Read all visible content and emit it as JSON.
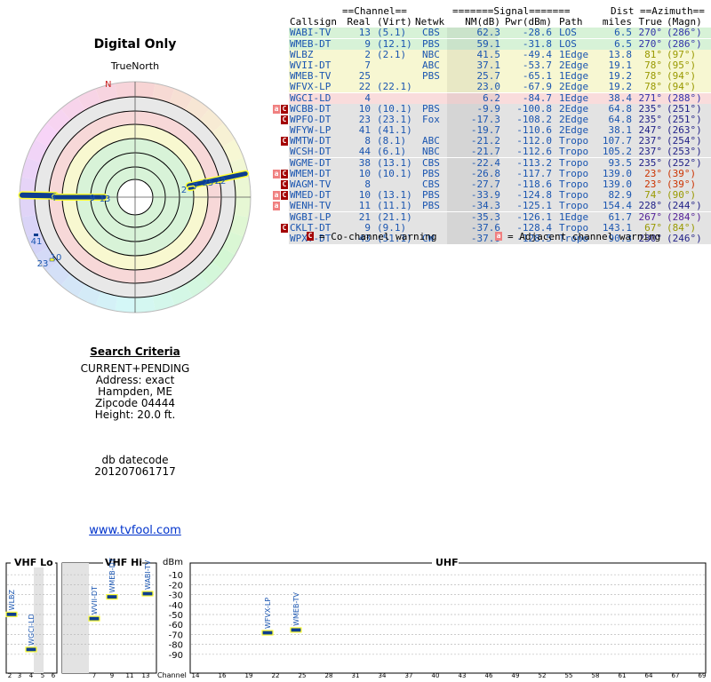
{
  "title": "Digital Only",
  "true_north": "TrueNorth",
  "north_marker": "N",
  "search": {
    "header": "Search Criteria",
    "lines": [
      "CURRENT+PENDING",
      "Address: exact",
      "Hampden, ME",
      "Zipcode 04444",
      "Height: 20.0 ft."
    ],
    "db_label": "db datecode",
    "db_value": "201207061717"
  },
  "site_link": "www.tvfool.com",
  "table": {
    "group_headers": {
      "channel": "==Channel==",
      "signal": "=======Signal=======",
      "dist": "Dist",
      "azimuth": "==Azimuth=="
    },
    "columns": {
      "callsign": "Callsign",
      "real": "Real",
      "virt": "(Virt)",
      "netwk": "Netwk",
      "nm": "NM(dB)",
      "pwr": "Pwr(dBm)",
      "path": "Path",
      "miles": "miles",
      "true": "True",
      "magn": "(Magn)"
    },
    "rows": [
      {
        "callsign": "WABI-TV",
        "real": "13",
        "virt": "(5.1)",
        "netwk": "CBS",
        "nm": "62.3",
        "pwr": "-28.6",
        "path": "LOS",
        "miles": "6.5",
        "true": "270°",
        "magn": "(286°)",
        "bg": "#d7f2d7",
        "az": "#3333aa",
        "flag": ""
      },
      {
        "callsign": "WMEB-DT",
        "real": "9",
        "virt": "(12.1)",
        "netwk": "PBS",
        "nm": "59.1",
        "pwr": "-31.8",
        "path": "LOS",
        "miles": "6.5",
        "true": "270°",
        "magn": "(286°)",
        "bg": "#d7f2d7",
        "az": "#3333aa",
        "flag": ""
      },
      {
        "callsign": "WLBZ",
        "real": "2",
        "virt": "(2.1)",
        "netwk": "NBC",
        "nm": "41.5",
        "pwr": "-49.4",
        "path": "1Edge",
        "miles": "13.8",
        "true": "81°",
        "magn": "(97°)",
        "bg": "#f7f7d2",
        "az": "#999900",
        "flag": ""
      },
      {
        "callsign": "WVII-DT",
        "real": "7",
        "virt": "",
        "netwk": "ABC",
        "nm": "37.1",
        "pwr": "-53.7",
        "path": "2Edge",
        "miles": "19.1",
        "true": "78°",
        "magn": "(95°)",
        "bg": "#f7f7d2",
        "az": "#999900",
        "flag": ""
      },
      {
        "callsign": "WMEB-TV",
        "real": "25",
        "virt": "",
        "netwk": "PBS",
        "nm": "25.7",
        "pwr": "-65.1",
        "path": "1Edge",
        "miles": "19.2",
        "true": "78°",
        "magn": "(94°)",
        "bg": "#f7f7d2",
        "az": "#999900",
        "flag": ""
      },
      {
        "callsign": "WFVX-LP",
        "real": "22",
        "virt": "(22.1)",
        "netwk": "",
        "nm": "23.0",
        "pwr": "-67.9",
        "path": "2Edge",
        "miles": "19.2",
        "true": "78°",
        "magn": "(94°)",
        "bg": "#f7f7d2",
        "az": "#999900",
        "flag": ""
      },
      {
        "callsign": "WGCI-LD",
        "real": "4",
        "virt": "",
        "netwk": "",
        "nm": "6.2",
        "pwr": "-84.7",
        "path": "1Edge",
        "miles": "38.4",
        "true": "271°",
        "magn": "(288°)",
        "bg": "#f9dcdc",
        "az": "#3333aa",
        "flag": ""
      },
      {
        "callsign": "WCBB-DT",
        "real": "10",
        "virt": "(10.1)",
        "netwk": "PBS",
        "nm": "-9.9",
        "pwr": "-100.8",
        "path": "2Edge",
        "miles": "64.8",
        "true": "235°",
        "magn": "(251°)",
        "bg": "#e3e3e3",
        "az": "#222288",
        "flag": "AC"
      },
      {
        "callsign": "WPFO-DT",
        "real": "23",
        "virt": "(23.1)",
        "netwk": "Fox",
        "nm": "-17.3",
        "pwr": "-108.2",
        "path": "2Edge",
        "miles": "64.8",
        "true": "235°",
        "magn": "(251°)",
        "bg": "#e3e3e3",
        "az": "#222288",
        "flag": "C"
      },
      {
        "callsign": "WFYW-LP",
        "real": "41",
        "virt": "(41.1)",
        "netwk": "",
        "nm": "-19.7",
        "pwr": "-110.6",
        "path": "2Edge",
        "miles": "38.1",
        "true": "247°",
        "magn": "(263°)",
        "bg": "#e3e3e3",
        "az": "#222288",
        "flag": ""
      },
      {
        "callsign": "WMTW-DT",
        "real": "8",
        "virt": "(8.1)",
        "netwk": "ABC",
        "nm": "-21.2",
        "pwr": "-112.0",
        "path": "Tropo",
        "miles": "107.7",
        "true": "237°",
        "magn": "(254°)",
        "bg": "#e3e3e3",
        "az": "#222288",
        "flag": "C"
      },
      {
        "callsign": "WCSH-DT",
        "real": "44",
        "virt": "(6.1)",
        "netwk": "NBC",
        "nm": "-21.7",
        "pwr": "-112.6",
        "path": "Tropo",
        "miles": "105.2",
        "true": "237°",
        "magn": "(253°)",
        "bg": "#e3e3e3",
        "az": "#222288",
        "flag": ""
      },
      {
        "callsign": "WGME-DT",
        "real": "38",
        "virt": "(13.1)",
        "netwk": "CBS",
        "nm": "-22.4",
        "pwr": "-113.2",
        "path": "Tropo",
        "miles": "93.5",
        "true": "235°",
        "magn": "(252°)",
        "bg": "#e3e3e3",
        "az": "#222288",
        "flag": ""
      },
      {
        "callsign": "WMEM-DT",
        "real": "10",
        "virt": "(10.1)",
        "netwk": "PBS",
        "nm": "-26.8",
        "pwr": "-117.7",
        "path": "Tropo",
        "miles": "139.0",
        "true": "23°",
        "magn": "(39°)",
        "bg": "#e3e3e3",
        "az": "#cc3300",
        "flag": "AC"
      },
      {
        "callsign": "WAGM-TV",
        "real": "8",
        "virt": "",
        "netwk": "CBS",
        "nm": "-27.7",
        "pwr": "-118.6",
        "path": "Tropo",
        "miles": "139.0",
        "true": "23°",
        "magn": "(39°)",
        "bg": "#e3e3e3",
        "az": "#cc3300",
        "flag": "C"
      },
      {
        "callsign": "WMED-DT",
        "real": "10",
        "virt": "(13.1)",
        "netwk": "PBS",
        "nm": "-33.9",
        "pwr": "-124.8",
        "path": "Tropo",
        "miles": "82.9",
        "true": "74°",
        "magn": "(90°)",
        "bg": "#e3e3e3",
        "az": "#999900",
        "flag": "AC"
      },
      {
        "callsign": "WENH-TV",
        "real": "11",
        "virt": "(11.1)",
        "netwk": "PBS",
        "nm": "-34.3",
        "pwr": "-125.1",
        "path": "Tropo",
        "miles": "154.4",
        "true": "228°",
        "magn": "(244°)",
        "bg": "#e3e3e3",
        "az": "#222288",
        "flag": "A"
      },
      {
        "callsign": "WGBI-LP",
        "real": "21",
        "virt": "(21.1)",
        "netwk": "",
        "nm": "-35.3",
        "pwr": "-126.1",
        "path": "1Edge",
        "miles": "61.7",
        "true": "267°",
        "magn": "(284°)",
        "bg": "#e3e3e3",
        "az": "#552299",
        "flag": ""
      },
      {
        "callsign": "CKLT-DT",
        "real": "9",
        "virt": "(9.1)",
        "netwk": "",
        "nm": "-37.6",
        "pwr": "-128.4",
        "path": "Tropo",
        "miles": "143.1",
        "true": "67°",
        "magn": "(84°)",
        "bg": "#e3e3e3",
        "az": "#999900",
        "flag": "C"
      },
      {
        "callsign": "WPXT-DT",
        "real": "43",
        "virt": "(51.1)",
        "netwk": "CW",
        "nm": "-37.6",
        "pwr": "-128.5",
        "path": "Tropo",
        "miles": "90.3",
        "true": "230°",
        "magn": "(246°)",
        "bg": "#e3e3e3",
        "az": "#222288",
        "flag": ""
      }
    ]
  },
  "legend": {
    "co_flag": "C",
    "co_text": "= Co-channel warning",
    "adj_flag": "a",
    "adj_text": "= Adjacent channel warning"
  },
  "radar_labels": [
    {
      "label": "4",
      "az": 271
    },
    {
      "label": "9",
      "az": 270
    },
    {
      "label": "13",
      "az": 270
    },
    {
      "label": "2",
      "az": 81
    },
    {
      "label": "7",
      "az": 78
    },
    {
      "label": "25",
      "az": 78
    },
    {
      "label": "22",
      "az": 78
    },
    {
      "label": "41",
      "az": 247
    },
    {
      "label": "23",
      "az": 235
    },
    {
      "label": "10",
      "az": 235
    }
  ],
  "spectrum": {
    "sections": {
      "vhf_lo": "VHF Lo",
      "vhf_hi": "VHF Hi",
      "uhf": "UHF"
    },
    "y_unit": "dBm",
    "y_ticks": [
      "-10",
      "-20",
      "-30",
      "-40",
      "-50",
      "-60",
      "-70",
      "-80",
      "-90"
    ],
    "x_label": "Channel",
    "vhf_lo_channels": [
      "2",
      "3",
      "4",
      "5",
      "6"
    ],
    "vhf_hi_channels": [
      "7",
      "9",
      "11",
      "13"
    ],
    "uhf_channels": [
      "14",
      "16",
      "19",
      "22",
      "25",
      "28",
      "31",
      "34",
      "37",
      "40",
      "43",
      "46",
      "49",
      "52",
      "55",
      "58",
      "61",
      "64",
      "67",
      "69"
    ],
    "markers": [
      {
        "callsign": "WLBZ",
        "channel": 2,
        "dbm": -49.4,
        "band": "lo"
      },
      {
        "callsign": "WGCI-LD",
        "channel": 4,
        "dbm": -84.7,
        "band": "lo"
      },
      {
        "callsign": "WVII-DT",
        "channel": 7,
        "dbm": -53.7,
        "band": "hi"
      },
      {
        "callsign": "WMEB-DT",
        "channel": 9,
        "dbm": -31.8,
        "band": "hi"
      },
      {
        "callsign": "WABI-TV",
        "channel": 13,
        "dbm": -28.6,
        "band": "hi"
      },
      {
        "callsign": "WFVX-LP",
        "channel": 22,
        "dbm": -67.9,
        "band": "uhf"
      },
      {
        "callsign": "WMEB-TV",
        "channel": 25,
        "dbm": -65.1,
        "band": "uhf"
      }
    ]
  },
  "colors": {
    "link": "#0033cc",
    "header": "#2255aa",
    "row_text": "#1a55b0",
    "warn_co": "#a30000",
    "warn_adj": "#f08080",
    "marker": "#0d3d8f",
    "marker_fill": "#ffff33"
  }
}
